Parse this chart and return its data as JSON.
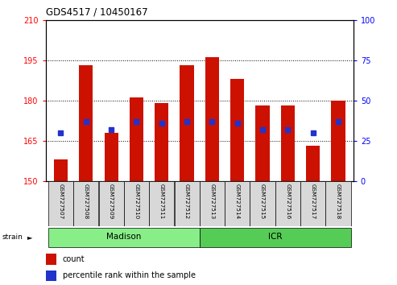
{
  "title": "GDS4517 / 10450167",
  "categories": [
    "GSM727507",
    "GSM727508",
    "GSM727509",
    "GSM727510",
    "GSM727511",
    "GSM727512",
    "GSM727513",
    "GSM727514",
    "GSM727515",
    "GSM727516",
    "GSM727517",
    "GSM727518"
  ],
  "red_values": [
    158,
    193,
    168,
    181,
    179,
    193,
    196,
    188,
    178,
    178,
    163,
    180
  ],
  "blue_values_pct": [
    30,
    37,
    32,
    37,
    36,
    37,
    37,
    36,
    32,
    32,
    30,
    37
  ],
  "ylim_left": [
    150,
    210
  ],
  "ylim_right": [
    0,
    100
  ],
  "yticks_left": [
    150,
    165,
    180,
    195,
    210
  ],
  "yticks_right": [
    0,
    25,
    50,
    75,
    100
  ],
  "bar_color": "#cc1100",
  "blue_color": "#2233cc",
  "bg_color": "#ffffff",
  "madison_color": "#88ee88",
  "icr_color": "#55cc55",
  "madison_n": 6,
  "icr_n": 6,
  "strain_label": "strain",
  "madison_label": "Madison",
  "icr_label": "ICR",
  "legend_count": "count",
  "legend_pct": "percentile rank within the sample",
  "bar_width": 0.55
}
